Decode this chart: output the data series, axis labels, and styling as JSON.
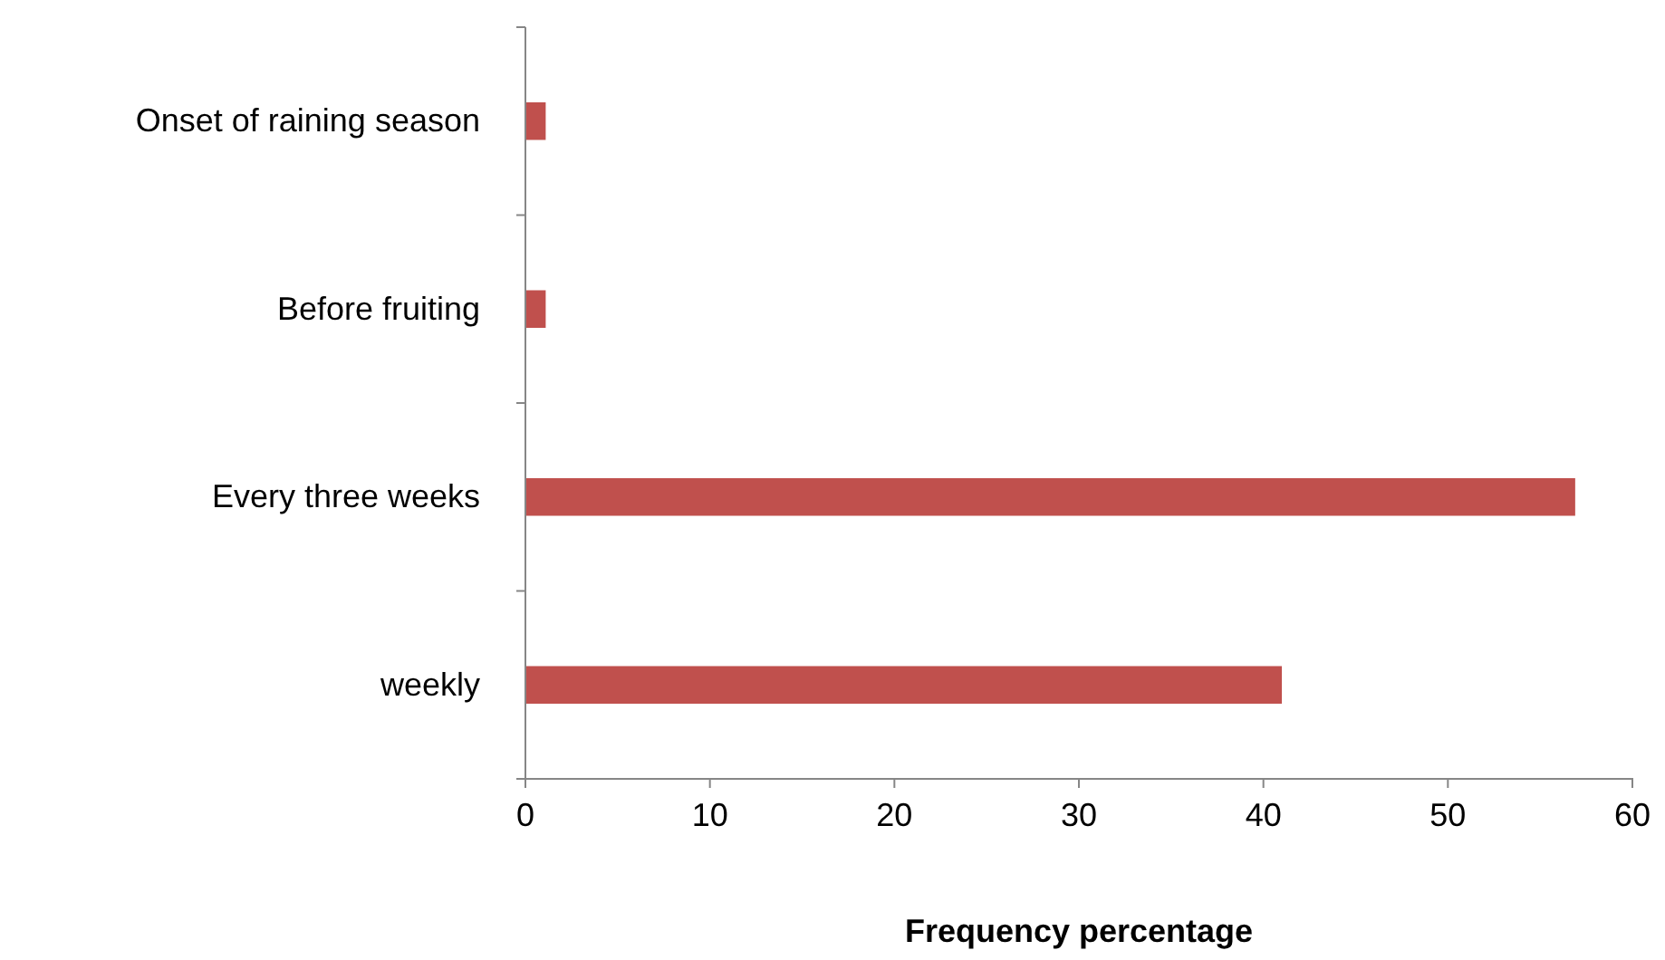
{
  "chart_data": {
    "type": "bar",
    "orientation": "horizontal",
    "xlabel": "Frequency percentage",
    "categories": [
      "Onset of raining season",
      "Before fruiting",
      "Every three weeks",
      "weekly"
    ],
    "values": [
      1.1,
      1.1,
      56.9,
      41.0
    ],
    "color": "#c0504d",
    "xlim": [
      0,
      60
    ],
    "xticks": [
      0,
      10,
      20,
      30,
      40,
      50,
      60
    ],
    "grid": false
  }
}
